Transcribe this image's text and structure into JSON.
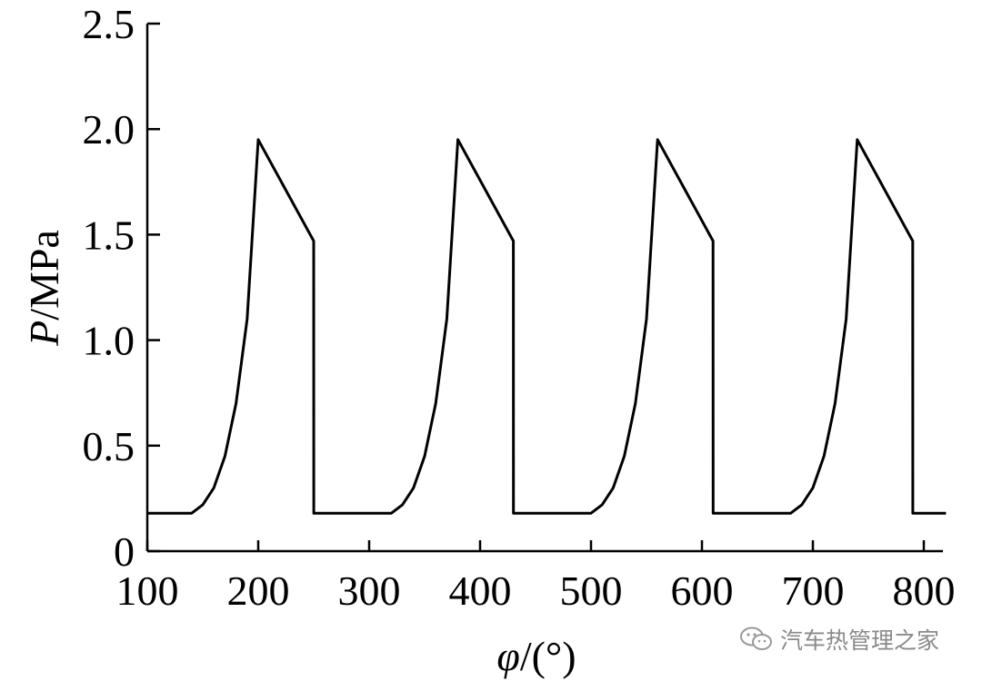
{
  "chart_data": {
    "type": "line",
    "title": "",
    "xlabel_var": "φ",
    "xlabel_unit": "/(°)",
    "ylabel_var": "P",
    "ylabel_unit": "/MPa",
    "xlim": [
      100,
      820
    ],
    "ylim": [
      0,
      2.5
    ],
    "xticks": [
      100,
      200,
      300,
      400,
      500,
      600,
      700,
      800
    ],
    "xtick_labels": [
      "100",
      "200",
      "300",
      "400",
      "500",
      "600",
      "700",
      "800"
    ],
    "yticks": [
      0,
      0.5,
      1.0,
      1.5,
      2.0,
      2.5
    ],
    "ytick_labels": [
      "0",
      "0.5",
      "1.0",
      "1.5",
      "2.0",
      "2.5"
    ],
    "grid": false,
    "legend": "none",
    "series": [
      {
        "color": "#000000",
        "x": [
          100,
          140,
          150,
          160,
          170,
          180,
          190,
          200,
          225,
          250,
          250.1,
          320,
          330,
          340,
          350,
          360,
          370,
          380,
          405,
          430,
          430.1,
          500,
          510,
          520,
          530,
          540,
          550,
          560,
          585,
          610,
          610.1,
          680,
          690,
          700,
          710,
          720,
          730,
          740,
          765,
          790,
          790.1,
          820
        ],
        "y": [
          0.18,
          0.18,
          0.22,
          0.3,
          0.45,
          0.7,
          1.1,
          1.95,
          1.71,
          1.47,
          0.18,
          0.18,
          0.22,
          0.3,
          0.45,
          0.7,
          1.1,
          1.95,
          1.71,
          1.47,
          0.18,
          0.18,
          0.22,
          0.3,
          0.45,
          0.7,
          1.1,
          1.95,
          1.71,
          1.47,
          0.18,
          0.18,
          0.22,
          0.3,
          0.45,
          0.7,
          1.1,
          1.95,
          1.71,
          1.47,
          0.18,
          0.18
        ]
      }
    ]
  },
  "watermark": {
    "text": "汽车热管理之家",
    "icon": "wechat-icon"
  }
}
